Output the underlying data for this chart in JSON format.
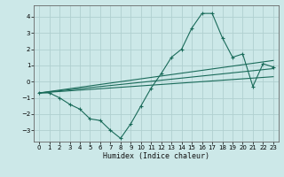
{
  "xlabel": "Humidex (Indice chaleur)",
  "background_color": "#cce8e8",
  "grid_color": "#b0d0d0",
  "line_color": "#1a6b5a",
  "xlim": [
    -0.5,
    23.5
  ],
  "ylim": [
    -3.7,
    4.7
  ],
  "yticks": [
    -3,
    -2,
    -1,
    0,
    1,
    2,
    3,
    4
  ],
  "xticks": [
    0,
    1,
    2,
    3,
    4,
    5,
    6,
    7,
    8,
    9,
    10,
    11,
    12,
    13,
    14,
    15,
    16,
    17,
    18,
    19,
    20,
    21,
    22,
    23
  ],
  "series1_x": [
    0,
    1,
    2,
    3,
    4,
    5,
    6,
    7,
    8,
    9,
    10,
    11,
    12,
    13,
    14,
    15,
    16,
    17,
    18,
    19,
    20,
    21,
    22,
    23
  ],
  "series1_y": [
    -0.7,
    -0.7,
    -1.0,
    -1.4,
    -1.7,
    -2.3,
    -2.4,
    -3.0,
    -3.5,
    -2.6,
    -1.5,
    -0.4,
    0.5,
    1.5,
    2.0,
    3.3,
    4.2,
    4.2,
    2.7,
    1.5,
    1.7,
    -0.3,
    1.1,
    0.9
  ],
  "series2_x": [
    0,
    23
  ],
  "series2_y": [
    -0.7,
    0.3
  ],
  "series3_x": [
    0,
    23
  ],
  "series3_y": [
    -0.7,
    0.8
  ],
  "series4_x": [
    0,
    23
  ],
  "series4_y": [
    -0.7,
    1.3
  ]
}
